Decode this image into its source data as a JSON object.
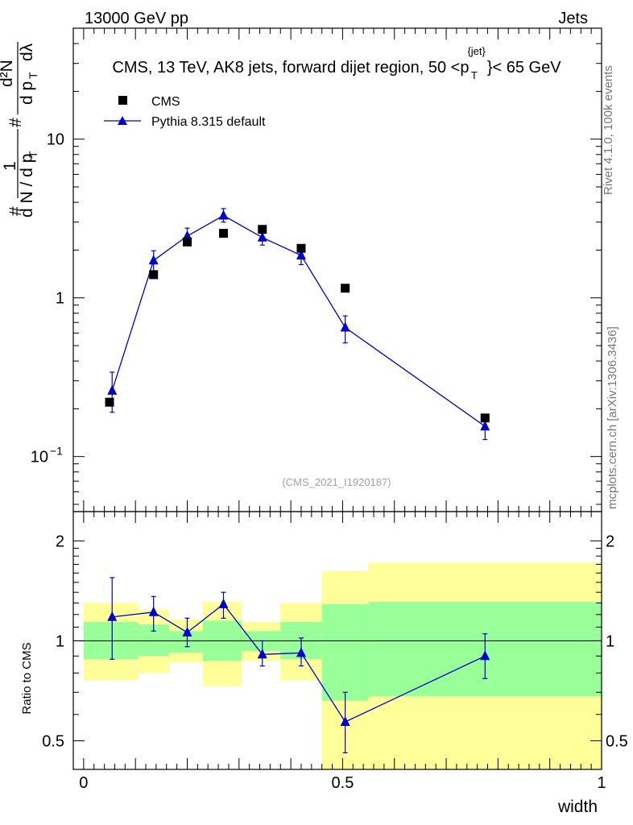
{
  "header": {
    "energy": "13000 GeV pp",
    "category": "Jets"
  },
  "side_labels": {
    "rivet": "Rivet 4.1.0,  100k events",
    "mcplots": "mcplots.cern.ch [arXiv:1306.3436]"
  },
  "colors": {
    "cms": "#000000",
    "pythia": "#0000cc",
    "band_stat": "#99ff99",
    "band_total": "#ffff99"
  },
  "chart_data": [
    {
      "name": "main-panel",
      "type": "scatter",
      "title": "CMS, 13 TeV, AK8 jets, forward dijet region, 50 <p",
      "title_sup": "{jet}",
      "title_sub": "T",
      "title_tail": "}< 65 GeV",
      "xlabel": "width",
      "ylabel": "#1/dN/dp_T # d^2N/dp_T dλ",
      "yscale": "log",
      "ylim": [
        0.045,
        50
      ],
      "xlim": [
        -0.02,
        1.0
      ],
      "yticks": [
        {
          "value": 0.1,
          "label": "10",
          "exp": "−1"
        },
        {
          "value": 1,
          "label": "1",
          "exp": ""
        },
        {
          "value": 10,
          "label": "10",
          "exp": ""
        }
      ],
      "legend_position": "top-left",
      "watermark": "(CMS_2021_I1920187)",
      "series": [
        {
          "name": "CMS",
          "marker": "square",
          "x": [
            0.05,
            0.135,
            0.2,
            0.27,
            0.345,
            0.42,
            0.505,
            0.775
          ],
          "y": [
            0.22,
            1.4,
            2.25,
            2.55,
            2.7,
            2.05,
            1.15,
            0.175
          ]
        },
        {
          "name": "Pythia 8.315 default",
          "marker": "triangle",
          "x": [
            0.055,
            0.135,
            0.2,
            0.27,
            0.345,
            0.42,
            0.505,
            0.775
          ],
          "y": [
            0.26,
            1.72,
            2.45,
            3.3,
            2.4,
            1.85,
            0.65,
            0.155
          ],
          "yerr_low": [
            0.19,
            1.45,
            2.18,
            3.0,
            2.15,
            1.62,
            0.52,
            0.128
          ],
          "yerr_high": [
            0.34,
            1.98,
            2.75,
            3.65,
            2.72,
            2.1,
            0.77,
            0.182
          ]
        }
      ]
    },
    {
      "name": "ratio-panel",
      "type": "scatter",
      "ylabel": "Ratio to CMS",
      "xlabel": "width",
      "yscale": "log",
      "ylim": [
        0.41,
        2.45
      ],
      "xlim": [
        -0.02,
        1.0
      ],
      "yticks": [
        {
          "value": 0.5,
          "label": "0.5"
        },
        {
          "value": 1,
          "label": "1"
        },
        {
          "value": 2,
          "label": "2"
        }
      ],
      "xticks": [
        {
          "value": 0,
          "label": "0"
        },
        {
          "value": 0.5,
          "label": "0.5"
        },
        {
          "value": 1,
          "label": "1"
        }
      ],
      "bands": [
        {
          "x0": 0.0,
          "x1": 0.105,
          "stat_lo": 0.88,
          "stat_hi": 1.14,
          "tot_lo": 0.76,
          "tot_hi": 1.3
        },
        {
          "x0": 0.105,
          "x1": 0.165,
          "stat_lo": 0.9,
          "stat_hi": 1.12,
          "tot_lo": 0.8,
          "tot_hi": 1.24
        },
        {
          "x0": 0.165,
          "x1": 0.23,
          "stat_lo": 0.92,
          "stat_hi": 1.07,
          "tot_lo": 0.86,
          "tot_hi": 1.16
        },
        {
          "x0": 0.23,
          "x1": 0.305,
          "stat_lo": 0.87,
          "stat_hi": 1.15,
          "tot_lo": 0.73,
          "tot_hi": 1.31
        },
        {
          "x0": 0.305,
          "x1": 0.38,
          "stat_lo": 0.93,
          "stat_hi": 1.07,
          "tot_lo": 0.87,
          "tot_hi": 1.14
        },
        {
          "x0": 0.38,
          "x1": 0.46,
          "stat_lo": 0.88,
          "stat_hi": 1.14,
          "tot_lo": 0.76,
          "tot_hi": 1.3
        },
        {
          "x0": 0.46,
          "x1": 0.55,
          "stat_lo": 0.66,
          "stat_hi": 1.29,
          "tot_lo": 0.41,
          "tot_hi": 1.62
        },
        {
          "x0": 0.55,
          "x1": 1.0,
          "stat_lo": 0.68,
          "stat_hi": 1.31,
          "tot_lo": 0.41,
          "tot_hi": 1.72
        }
      ],
      "series": [
        {
          "name": "Pythia 8.315 default",
          "x": [
            0.055,
            0.135,
            0.2,
            0.27,
            0.345,
            0.42,
            0.505,
            0.775
          ],
          "y": [
            1.18,
            1.22,
            1.06,
            1.29,
            0.91,
            0.92,
            0.57,
            0.9
          ],
          "yerr_low": [
            0.88,
            1.07,
            0.96,
            1.17,
            0.84,
            0.84,
            0.46,
            0.77
          ],
          "yerr_high": [
            1.55,
            1.36,
            1.17,
            1.4,
            1.0,
            1.02,
            0.7,
            1.05
          ]
        }
      ]
    }
  ]
}
